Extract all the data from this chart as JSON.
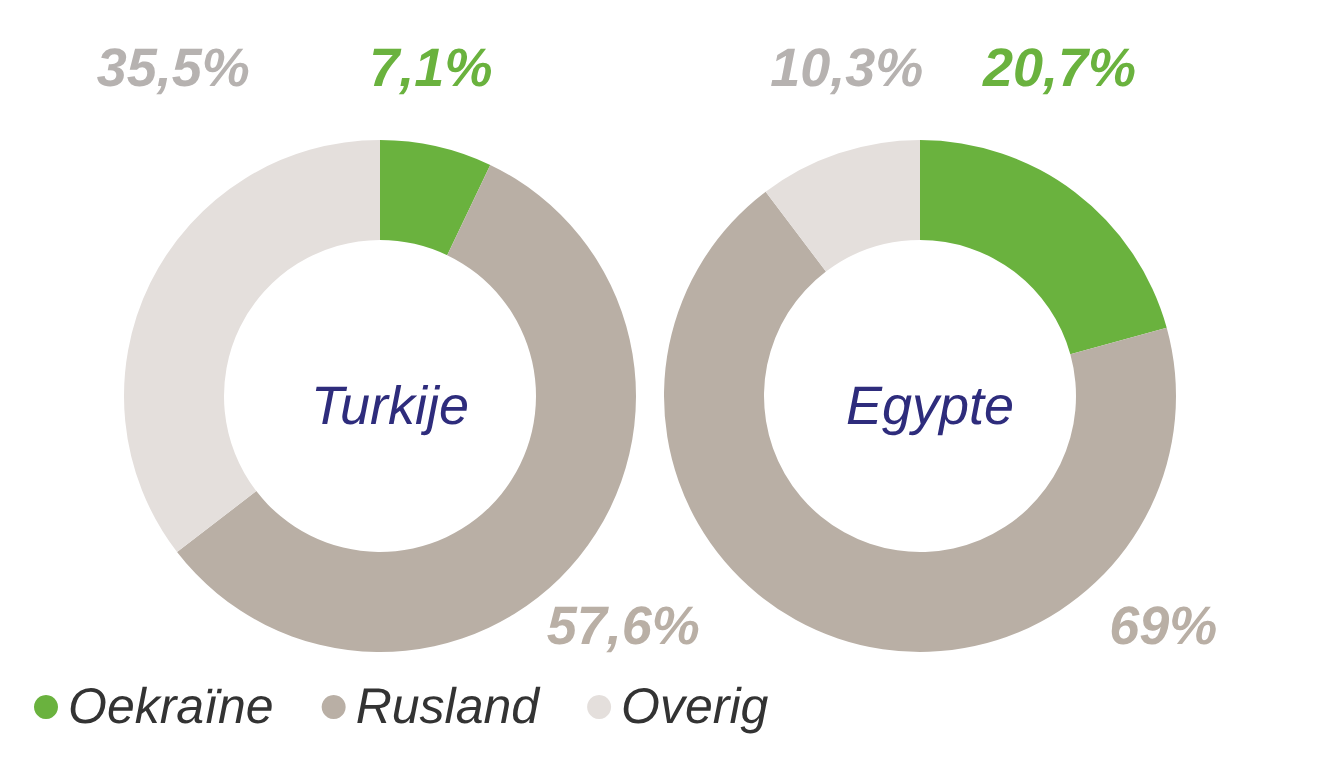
{
  "chart_data": {
    "type": "donut",
    "categories": [
      "Oekraïne",
      "Rusland",
      "Overig"
    ],
    "colors": [
      "#6ab23e",
      "#b9afa5",
      "#e4dfdc"
    ],
    "legend": "bottom left",
    "series": [
      {
        "name": "Turkije",
        "values": [
          7.1,
          57.6,
          35.5
        ],
        "value_labels": [
          "7,1%",
          "57,6%",
          "35,5%"
        ]
      },
      {
        "name": "Egypte",
        "values": [
          20.7,
          69,
          10.3
        ],
        "value_labels": [
          "20,7%",
          "69%",
          "10,3%"
        ]
      }
    ]
  }
}
